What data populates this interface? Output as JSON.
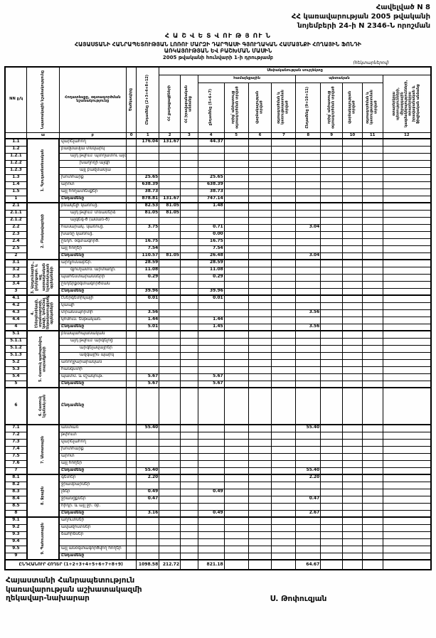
{
  "colors": {
    "paper": "#fefefe",
    "ink": "#0a0a0a"
  },
  "header": {
    "annex": "Հավելված N 8",
    "gov_line1": "ՀՀ կառավարության 2005 թվականի",
    "gov_line2": "նոյեմբերի 24-ի N 2346-Ն որոշման",
    "report_title": "Հ Ա Շ Վ Ե Տ Վ ՈՒ Թ Յ ՈՒ Ն",
    "subtitle1": "ՀԱՅԱՍՏԱՆԻ ՀԱՆՐԱՊԵՏՈՒԹՅԱՆ ԼՈՌՈՒ ՄԱՐԶԻ ԴԱՐՊԱՍԻ ԳՅՈՒՂԱԿԱՆ ՀԱՄԱՅՆՔԻ ՀՈՂԱՅԻՆ ՖՈՆԴԻ",
    "subtitle2": "ԱՌԿԱՅՈՒԹՅԱՆ ԵՎ ԲԱՇԽՄԱՆ ՄԱՍԻՆ",
    "as_of": "2005 թվականի հունվարի 1-ի դրությամբ",
    "units": "(հեկտարներով)"
  },
  "table": {
    "headers": {
      "nn": "NN ը/կ",
      "purpose": "Նպատակային նշանակությունը",
      "landtype": "Հողատեսքը, օգտագործման նշանակությունը",
      "code": "Ծածկագիրը",
      "total1": "Ընդամենը (2+3+4+8+12)",
      "ownership": "Սեփականության սուբյեկտը",
      "community": "համայնքային",
      "state": "պետական",
      "citizens": "ՀՀ քաղաքացիների",
      "legal": "ՀՀ իրավաբանական անձանց",
      "c4": "ընդամենը (5+6+7)",
      "c5": "որից՝ անհատույց օգտագործման տրված",
      "c6": "վարձակալության տրված",
      "c7": "օգտագործման և կառուցապատման տրված",
      "c8": "Ընդամենը (9+10+11)",
      "c9": "որից՝ անհատույց օգտագործման տրված",
      "c10": "վարձակալության տրված",
      "c11": "օգտագործման և կառուցապատման տրված",
      "c12": "օտարերկրյա պետությունների, միջազգային կազմակերպությունների, օտարերկրյա իրավաբանական և ֆիզիկական անձանց"
    },
    "col_numbers": [
      "",
      "ա",
      "բ",
      "0",
      "1",
      "2",
      "3",
      "4",
      "5",
      "6",
      "7",
      "8",
      "9",
      "10",
      "11",
      "12"
    ],
    "groups": [
      {
        "label": "1. Գյուղատնտեսական",
        "rows": [
          {
            "n": "1.1",
            "t": "վարելահող",
            "i": 0,
            "v": {
              "1": "176.04",
              "2": "131.67",
              "4": "44.37"
            }
          },
          {
            "n": "1.2",
            "t": "բազմամյա տնկարկ",
            "i": 0,
            "v": {}
          },
          {
            "n": "1.2.1",
            "t": "այդ թվում՝ պտղատու այգի",
            "i": 1,
            "v": {}
          },
          {
            "n": "1.2.2",
            "t": "խաղողի այգի",
            "i": 2,
            "v": {}
          },
          {
            "n": "1.2.3",
            "t": "այլ բազմամյա",
            "i": 2,
            "v": {}
          },
          {
            "n": "1.3",
            "t": "խոտհարք",
            "i": 0,
            "v": {
              "1": "25.65",
              "4": "25.65"
            }
          },
          {
            "n": "1.4",
            "t": "արոտ",
            "i": 0,
            "v": {
              "1": "638.39",
              "4": "638.39"
            }
          },
          {
            "n": "1.5",
            "t": "այլ հողատեսքեր",
            "i": 0,
            "v": {
              "1": "38.73",
              "4": "38.73"
            }
          },
          {
            "n": "1",
            "t": "Ընդամենը",
            "i": 0,
            "b": 1,
            "v": {
              "1": "878.81",
              "2": "131.67",
              "4": "747.14"
            }
          }
        ]
      },
      {
        "label": "2. Բնակավայրերի",
        "rows": [
          {
            "n": "2.1",
            "t": "բնակելի կառուց.",
            "i": 0,
            "v": {
              "1": "82.53",
              "2": "81.05",
              "4": "1.48"
            }
          },
          {
            "n": "2.1.1",
            "t": "այդ թվում՝ տնամերձ",
            "i": 1,
            "v": {
              "1": "81.05",
              "2": "81.05"
            }
          },
          {
            "n": "2.1.2",
            "t": "այգեգ-ծ (ամառ-ծ)",
            "i": 1,
            "v": {}
          },
          {
            "n": "2.2",
            "t": "հասարակ. կառուց.",
            "i": 0,
            "v": {
              "1": "3.75",
              "4": "0.71",
              "8": "3.04"
            }
          },
          {
            "n": "2.3",
            "t": "խառը կառուց.",
            "i": 0,
            "v": {
              "4": "0.00"
            }
          },
          {
            "n": "2.4",
            "t": "ընդհ. օգտագործ.",
            "i": 0,
            "v": {
              "1": "16.75",
              "4": "16.75"
            }
          },
          {
            "n": "2.5",
            "t": "այլ հողեր",
            "i": 0,
            "v": {
              "1": "7.54",
              "4": "7.54"
            }
          },
          {
            "n": "2",
            "t": "Ընդամենը",
            "i": 0,
            "b": 1,
            "v": {
              "1": "110.57",
              "2": "81.05",
              "4": "26.48",
              "8": "3.04"
            }
          }
        ]
      },
      {
        "label": "3. Արդյունաբեր., ընդերքօգտ. և այլ արտադրական նշանակության օբյեկտների",
        "rows": [
          {
            "n": "3.1",
            "t": "արդյունաբեր.",
            "i": 0,
            "v": {
              "1": "28.59",
              "4": "28.59"
            }
          },
          {
            "n": "3.2",
            "t": "գյուղատն. արտադր.",
            "i": 1,
            "v": {
              "1": "11.08",
              "4": "11.08"
            }
          },
          {
            "n": "3.3",
            "t": "պահեստարանների",
            "i": 0,
            "v": {
              "1": "0.29",
              "4": "0.29"
            }
          },
          {
            "n": "3.4",
            "t": "ընդերքօգտագործման",
            "i": 0,
            "v": {}
          },
          {
            "n": "3",
            "t": "Ընդամենը",
            "i": 0,
            "b": 1,
            "v": {
              "1": "39.96",
              "4": "39.96"
            }
          }
        ]
      },
      {
        "label": "4. Էներգետիկայի, տրանսպորտի, կապի, կոմունալ ենթակառուցվածքների օբյեկտների",
        "rows": [
          {
            "n": "4.1",
            "t": "էներգետիկայի",
            "i": 0,
            "v": {
              "1": "0.01",
              "4": "0.01"
            }
          },
          {
            "n": "4.2",
            "t": "կապի",
            "i": 0,
            "v": {}
          },
          {
            "n": "4.3",
            "t": "տրանսպորտի",
            "i": 0,
            "v": {
              "1": "3.56",
              "8": "3.56"
            }
          },
          {
            "n": "4.4",
            "t": "կոմուն. ենթակառ.",
            "i": 0,
            "v": {
              "1": "1.44",
              "4": "1.44"
            }
          },
          {
            "n": "4",
            "t": "Ընդամենը",
            "i": 0,
            "b": 1,
            "v": {
              "1": "5.01",
              "4": "1.45",
              "8": "3.56"
            }
          }
        ]
      },
      {
        "label": "5. Հատուկ պահպանվող տարածքների",
        "rows": [
          {
            "n": "5.1",
            "t": "բնապահպանական",
            "i": 0,
            "v": {}
          },
          {
            "n": "5.1.1",
            "t": "այդ թվում՝ արգելոց",
            "i": 1,
            "v": {}
          },
          {
            "n": "5.1.2",
            "t": "արգելավայրեր",
            "i": 2,
            "v": {}
          },
          {
            "n": "5.1.3",
            "t": "ազգային պարկ",
            "i": 2,
            "v": {}
          },
          {
            "n": "5.2",
            "t": "առողջարարական",
            "i": 0,
            "v": {}
          },
          {
            "n": "5.3",
            "t": "հանգստի",
            "i": 0,
            "v": {}
          },
          {
            "n": "5.4",
            "t": "պատմ. և մշակութ.",
            "i": 0,
            "v": {
              "1": "5.67",
              "4": "5.67"
            }
          },
          {
            "n": "5",
            "t": "Ընդամենը",
            "i": 0,
            "b": 1,
            "v": {
              "1": "5.67",
              "4": "5.67"
            }
          }
        ]
      },
      {
        "label": "6. Հատուկ նշանակ-յան",
        "rows": [
          {
            "n": "6",
            "t": "Ընդամենը",
            "i": 0,
            "b": 1,
            "h": 52,
            "v": {}
          }
        ]
      },
      {
        "label": "7. Անտառային",
        "rows": [
          {
            "n": "7.1",
            "t": "անտառ",
            "i": 0,
            "v": {
              "1": "55.40",
              "8": "55.40"
            }
          },
          {
            "n": "7.2",
            "t": "թփուտ",
            "i": 0,
            "v": {}
          },
          {
            "n": "7.3",
            "t": "վարելահող",
            "i": 0,
            "v": {}
          },
          {
            "n": "7.4",
            "t": "խոտհարք",
            "i": 0,
            "v": {}
          },
          {
            "n": "7.5",
            "t": "արոտ",
            "i": 0,
            "v": {}
          },
          {
            "n": "7.6",
            "t": "այլ հողեր",
            "i": 0,
            "v": {}
          },
          {
            "n": "7",
            "t": "Ընդամենը",
            "i": 0,
            "b": 1,
            "v": {
              "1": "55.40",
              "8": "55.40"
            }
          }
        ]
      },
      {
        "label": "8. Ջրային",
        "rows": [
          {
            "n": "8.1",
            "t": "գետեր",
            "i": 0,
            "v": {
              "1": "2.20",
              "8": "2.20"
            }
          },
          {
            "n": "8.2",
            "t": "ջրամբարներ",
            "i": 0,
            "v": {}
          },
          {
            "n": "8.3",
            "t": "լճեր",
            "i": 0,
            "v": {
              "1": "0.49",
              "4": "0.49"
            }
          },
          {
            "n": "8.4",
            "t": "ջրանցքներ",
            "i": 0,
            "v": {
              "1": "0.47",
              "8": "0.47"
            }
          },
          {
            "n": "8.5",
            "t": "հիդր. և այլ ջր. օբ.",
            "i": 0,
            "v": {}
          },
          {
            "n": "8",
            "t": "Ընդամենը",
            "i": 0,
            "b": 1,
            "v": {
              "1": "3.16",
              "4": "0.49",
              "8": "2.67"
            }
          }
        ]
      },
      {
        "label": "9. Պահուստային",
        "rows": [
          {
            "n": "9.1",
            "t": "աղուտներ",
            "i": 0,
            "v": {}
          },
          {
            "n": "9.2",
            "t": "ավազուտներ",
            "i": 0,
            "v": {}
          },
          {
            "n": "9.3",
            "t": "ճահիճներ",
            "i": 0,
            "v": {}
          },
          {
            "n": "9.4",
            "t": "",
            "i": 0,
            "v": {}
          },
          {
            "n": "9.5",
            "t": "այլ անօգտագործվող հողեր",
            "i": 0,
            "v": {}
          },
          {
            "n": "9",
            "t": "Ընդամենը",
            "i": 0,
            "b": 1,
            "v": {}
          }
        ]
      }
    ],
    "total_row": {
      "label": "ԸՆԴՀԱՆՈՒՐ ՀՈՂԵՐ (1+2+3+4+5+6+7+8+9)",
      "v": {
        "1": "1098.58",
        "2": "212.72",
        "4": "821.18",
        "8": "64.67"
      }
    }
  },
  "footer": {
    "line1": "Հայաստանի Հանրապետություն",
    "line2": "կառավարության աշխատակազմի",
    "line3": "ղեկավար-նախարար",
    "signature": "Ս. Թոփուզյան"
  }
}
